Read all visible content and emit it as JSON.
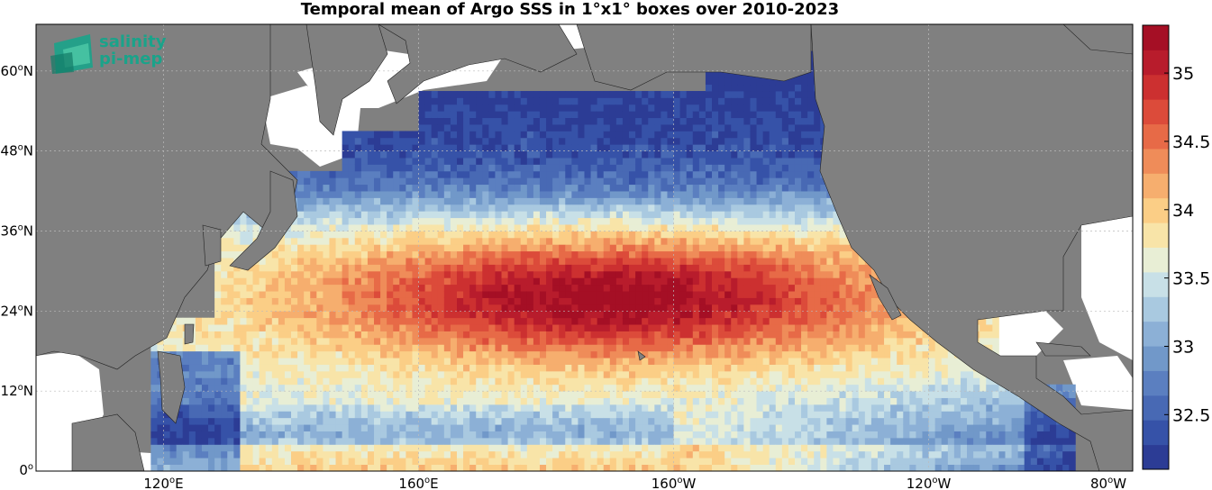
{
  "title": "Temporal mean of Argo SSS in 1°x1° boxes over 2010-2023",
  "logo": {
    "line1": "salinity",
    "line2": "pi-mep",
    "color": "#1aa38a",
    "icon": "salinity-logo-icon"
  },
  "map": {
    "lon_range": [
      100,
      272
    ],
    "lat_range": [
      0,
      67
    ],
    "land_color": "#808080",
    "nodata_color": "#ffffff",
    "lat_ticks": [
      {
        "lat": 60,
        "deg": "60",
        "hem": "N"
      },
      {
        "lat": 48,
        "deg": "48",
        "hem": "N"
      },
      {
        "lat": 36,
        "deg": "36",
        "hem": "N"
      },
      {
        "lat": 24,
        "deg": "24",
        "hem": "N"
      },
      {
        "lat": 12,
        "deg": "12",
        "hem": "N"
      },
      {
        "lat": 0,
        "deg": "0",
        "hem": ""
      }
    ],
    "lon_ticks": [
      {
        "lon": 120,
        "deg": "120",
        "hem": "E"
      },
      {
        "lon": 160,
        "deg": "160",
        "hem": "E"
      },
      {
        "lon": 200,
        "deg": "160",
        "hem": "W"
      },
      {
        "lon": 240,
        "deg": "120",
        "hem": "W"
      },
      {
        "lon": 280,
        "deg": "80",
        "hem": "W"
      }
    ]
  },
  "colorbar": {
    "min": 32.1,
    "max": 35.35,
    "ticks": [
      "32.5",
      "33",
      "33.5",
      "34",
      "34.5",
      "35"
    ],
    "tick_values": [
      32.5,
      33,
      33.5,
      34,
      34.5,
      35
    ],
    "colors": [
      "#2c3c95",
      "#3652a8",
      "#4869b4",
      "#5b7fc0",
      "#7198c9",
      "#8cb0d6",
      "#a9c9e0",
      "#c8e0e7",
      "#e8eed5",
      "#f8e4a8",
      "#fbce86",
      "#f6ae6e",
      "#ef8c59",
      "#e76a47",
      "#dc4b3a",
      "#cc3030",
      "#b81c2c",
      "#a50f25"
    ]
  }
}
